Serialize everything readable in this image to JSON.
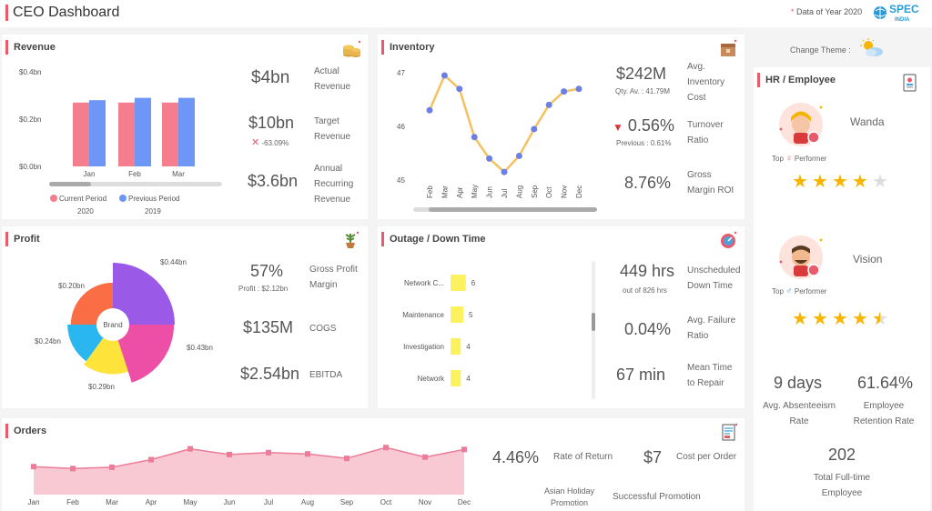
{
  "header": {
    "title": "CEO Dashboard",
    "note_star": "*",
    "note": "Data of Year 2020",
    "logo_top": "SPEC",
    "logo_bottom": "INDIA"
  },
  "colors": {
    "accent": "#e85b6b",
    "current": "#f47e8d",
    "previous": "#6d96f7",
    "line": "#f5c160",
    "dot": "#6c7fe6",
    "bar_yellow": "#fcf15e",
    "area": "#f8c8d3",
    "area_line": "#ec7c98",
    "star": "#f7b500"
  },
  "revenue": {
    "title": "Revenue",
    "icon": "coins-icon",
    "y_ticks": [
      "$0.4bn",
      "$0.2bn",
      "$0.0bn"
    ],
    "metrics": [
      {
        "value": "$4bn",
        "label_1": "Actual",
        "label_2": "Revenue"
      },
      {
        "value": "$10bn",
        "label_1": "Target",
        "label_2": "Revenue",
        "change": "-63.09%"
      },
      {
        "value": "$3.6bn",
        "label_1": "Annual",
        "label_2": "Recurring",
        "label_3": "Revenue"
      }
    ],
    "legend": {
      "current": "Current Period",
      "current_year": "2020",
      "previous": "Previous Period",
      "previous_year": "2019"
    }
  },
  "inventory": {
    "title": "Inventory",
    "icon": "inventory-box-icon",
    "y_ticks": [
      "47",
      "46",
      "45"
    ],
    "metrics": [
      {
        "value": "$242M",
        "sub": "Qty. Av. : 41.79M",
        "label_1": "Avg.",
        "label_2": "Inventory",
        "label_3": "Cost"
      },
      {
        "value": "0.56%",
        "sub": "Previous : 0.61%",
        "label_1": "Turnover",
        "label_2": "Ratio"
      },
      {
        "value": "8.76%",
        "label_1": "Gross",
        "label_2": "Margin ROI"
      }
    ]
  },
  "profit": {
    "title": "Profit",
    "icon": "money-plant-icon",
    "center_label": "Brand",
    "metrics": [
      {
        "value": "57%",
        "sub": "Profit : $2.12bn",
        "label_1": "Gross Profit",
        "label_2": "Margin"
      },
      {
        "value": "$135M",
        "label_1": "COGS"
      },
      {
        "value": "$2.54bn",
        "label_1": "EBITDA"
      }
    ]
  },
  "outage": {
    "title": "Outage / Down Time",
    "icon": "gauge-icon",
    "metrics": [
      {
        "value": "449 hrs",
        "sub": "out of 826 hrs",
        "label_1": "Unscheduled",
        "label_2": "Down Time"
      },
      {
        "value": "0.04%",
        "label_1": "Avg. Failure",
        "label_2": "Ratio"
      },
      {
        "value": "67 min",
        "label_1": "Mean Time",
        "label_2": "to Repair"
      }
    ]
  },
  "orders": {
    "title": "Orders",
    "icon": "document-icon",
    "metrics": [
      {
        "value": "4.46%",
        "label_1": "Rate of Return"
      },
      {
        "value": "$7",
        "label_1": "Cost per Order"
      }
    ],
    "bottom_labels": {
      "holiday_1": "Asian Holiday",
      "holiday_2": "Promotion",
      "promo": "Successful Promotion"
    }
  },
  "theme": {
    "label": "Change Theme :",
    "icon": "sun-cloud-icon"
  },
  "hr": {
    "title": "HR / Employee",
    "icon": "id-badge-icon",
    "employees": [
      {
        "name": "Wanda",
        "top": "Top",
        "performer": "Performer",
        "rating": 4,
        "icon": "female-avatar-icon"
      },
      {
        "name": "Vision",
        "top": "Top",
        "performer": "Performer",
        "rating": 4.5,
        "icon": "male-avatar-icon"
      }
    ],
    "stats": [
      {
        "value": "9 days",
        "label_1": "Avg. Absenteeism",
        "label_2": "Rate"
      },
      {
        "value": "61.64%",
        "label_1": "Employee",
        "label_2": "Retention Rate"
      },
      {
        "value": "202",
        "label_1": "Total Full-time",
        "label_2": "Employee"
      }
    ]
  },
  "chart_data": [
    {
      "type": "bar",
      "title": "Revenue",
      "categories": [
        "Jan",
        "Feb",
        "Mar"
      ],
      "series": [
        {
          "name": "Current Period",
          "values": [
            0.27,
            0.27,
            0.27
          ]
        },
        {
          "name": "Previous Period",
          "values": [
            0.28,
            0.29,
            0.29
          ]
        }
      ],
      "ylim": [
        0,
        0.4
      ],
      "y_ticks": [
        "$0.4bn",
        "$0.2bn",
        "$0.0bn"
      ],
      "legend": "bottom"
    },
    {
      "type": "line",
      "title": "Inventory",
      "x": [
        "Feb",
        "Mar",
        "Apr",
        "May",
        "Jun",
        "Jul",
        "Aug",
        "Sep",
        "Oct",
        "Nov",
        "Dec"
      ],
      "values": [
        46.3,
        46.95,
        46.7,
        45.8,
        45.4,
        45.15,
        45.45,
        45.95,
        46.4,
        46.65,
        46.7
      ],
      "ylim": [
        45,
        47
      ],
      "y_ticks": [
        "47",
        "46",
        "45"
      ]
    },
    {
      "type": "pie",
      "title": "Profit",
      "center_label": "Brand",
      "labels": [
        "$0.44bn",
        "$0.43bn",
        "$0.29bn",
        "$0.24bn",
        "$0.20bn"
      ],
      "values": [
        0.44,
        0.43,
        0.29,
        0.24,
        0.2
      ],
      "colors": [
        "#9b59e8",
        "#ec4fa5",
        "#fde33a",
        "#2ab7f0",
        "#fb6d44"
      ]
    },
    {
      "type": "bar",
      "title": "Outage / Down Time",
      "orientation": "horizontal",
      "categories": [
        "Network C...",
        "Maintenance",
        "Investigation",
        "Network"
      ],
      "values": [
        6,
        5,
        4,
        4
      ]
    },
    {
      "type": "area",
      "title": "Orders",
      "x": [
        "Jan",
        "Feb",
        "Mar",
        "Apr",
        "May",
        "Jun",
        "Jul",
        "Aug",
        "Sep",
        "Oct",
        "Nov",
        "Dec"
      ],
      "values": [
        4.4,
        4.1,
        4.3,
        5.5,
        7.2,
        6.3,
        6.6,
        6.4,
        5.7,
        7.4,
        5.9,
        7.1
      ],
      "ylim": [
        0,
        10
      ]
    }
  ]
}
